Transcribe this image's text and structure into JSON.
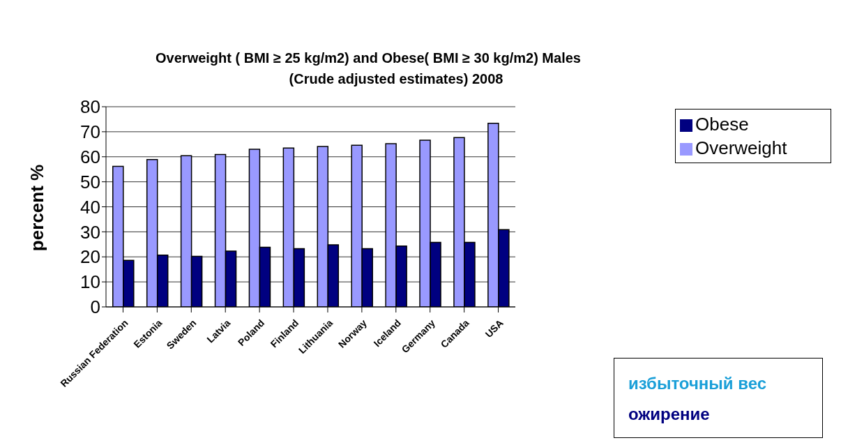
{
  "chart_data": {
    "type": "bar",
    "title": "Overweight ( BMI ≥ 25 kg/m2) and  Obese( BMI ≥ 30 kg/m2)  Males",
    "subtitle": "(Crude adjusted estimates) 2008",
    "ylabel": "percent %",
    "categories": [
      "Russian Federation",
      "Estonia",
      "Sweden",
      "Latvia",
      "Poland",
      "Finland",
      "Lithuania",
      "Norway",
      "Iceland",
      "Germany",
      "Canada",
      "USA"
    ],
    "series": [
      {
        "name": "Overweight",
        "color": "#9999ff",
        "values": [
          56.2,
          58.9,
          60.4,
          60.9,
          63.0,
          63.5,
          64.1,
          64.6,
          65.2,
          66.6,
          67.7,
          73.4
        ]
      },
      {
        "name": "Obese",
        "color": "#000080",
        "values": [
          18.6,
          20.7,
          20.2,
          22.3,
          23.8,
          23.3,
          24.8,
          23.3,
          24.3,
          25.8,
          25.8,
          30.9
        ]
      }
    ],
    "ylim": [
      0,
      80
    ],
    "yticks": [
      0,
      10,
      20,
      30,
      40,
      50,
      60,
      70,
      80
    ],
    "grid": "y",
    "legend": "right",
    "annotations": [
      "избыточный вес",
      "ожирение"
    ]
  }
}
